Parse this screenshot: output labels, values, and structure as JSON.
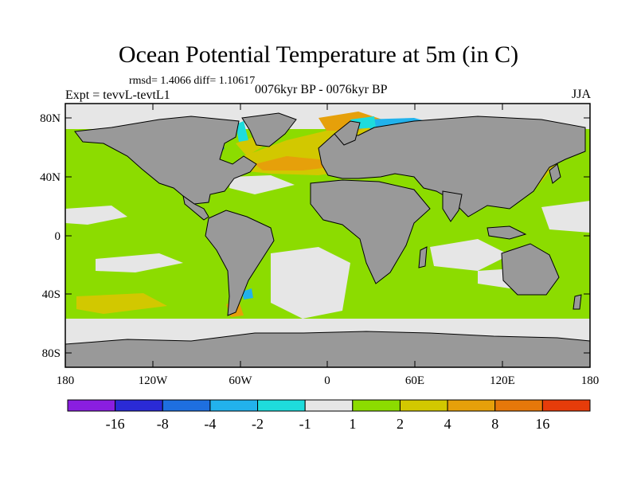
{
  "title": "Ocean Potential Temperature at 5m (in C)",
  "stats": "rmsd= 1.4066 diff= 1.10617",
  "experiment": "Expt = tevvL-tevtL1",
  "period": "0076kyr BP - 0076kyr BP",
  "season": "JJA",
  "lat_ticks": [
    "80N",
    "40N",
    "0",
    "40S",
    "80S"
  ],
  "lon_ticks": [
    "180",
    "120W",
    "60W",
    "0",
    "60E",
    "120E",
    "180"
  ],
  "colorbar": {
    "colors": [
      "#8a1ee0",
      "#2a2ad6",
      "#1e6fe0",
      "#22b2ec",
      "#1edcdc",
      "#e6e6e6",
      "#8cdc00",
      "#d2c800",
      "#e6a00a",
      "#e6780a",
      "#e63c0a"
    ],
    "labels": [
      "-16",
      "-8",
      "-4",
      "-2",
      "-1",
      "1",
      "2",
      "4",
      "8",
      "16"
    ]
  },
  "colors": {
    "land": "#999999",
    "ocean": "#8cdc00",
    "near_zero": "#e6e6e6",
    "frame": "#000000"
  }
}
